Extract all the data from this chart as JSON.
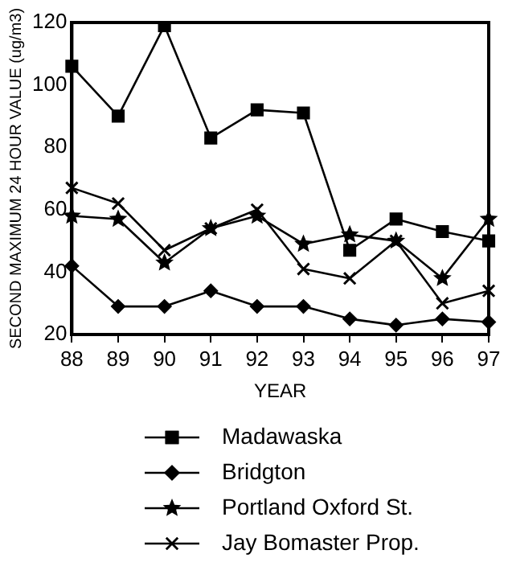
{
  "chart_data": {
    "type": "line",
    "xlabel": "YEAR",
    "ylabel": "SECOND MAXIMUM 24 HOUR VALUE (ug/m3)",
    "categories": [
      "88",
      "89",
      "90",
      "91",
      "92",
      "93",
      "94",
      "95",
      "96",
      "97"
    ],
    "ylim": [
      20,
      120
    ],
    "yticks": [
      20,
      40,
      60,
      80,
      100,
      120
    ],
    "grid": false,
    "legend": "bottom",
    "line_style": "solid",
    "series": [
      {
        "name": "Madawaska",
        "color": "#000000",
        "marker": "square",
        "values": [
          106,
          90,
          119,
          83,
          92,
          91,
          47,
          57,
          53,
          50
        ]
      },
      {
        "name": "Bridgton",
        "color": "#000000",
        "marker": "diamond",
        "values": [
          42,
          29,
          29,
          34,
          29,
          29,
          25,
          23,
          25,
          24
        ]
      },
      {
        "name": "Portland Oxford St.",
        "color": "#000000",
        "marker": "star",
        "values": [
          58,
          57,
          43,
          54,
          58,
          49,
          52,
          50,
          38,
          57
        ]
      },
      {
        "name": "Jay Bomaster Prop.",
        "color": "#000000",
        "marker": "cross",
        "values": [
          67,
          62,
          47,
          54,
          60,
          41,
          38,
          50,
          30,
          34
        ]
      }
    ]
  }
}
